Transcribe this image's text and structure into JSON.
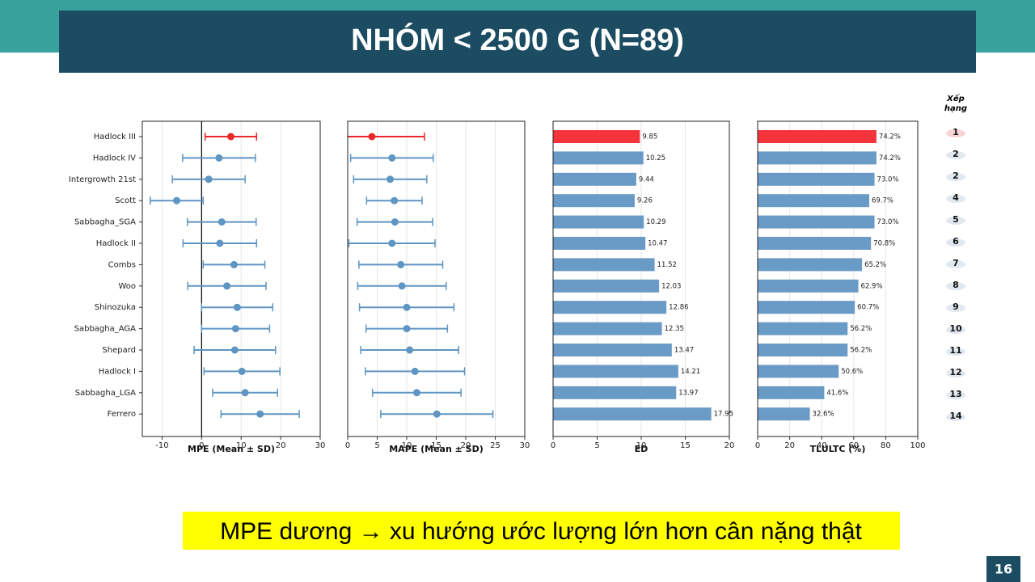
{
  "title": "NHÓM < 2500 G (N=89)",
  "footer": "MPE dương → xu hướng ước lượng lớn hơn cân nặng thật",
  "page_number": "16",
  "ranking": {
    "header": "Xếp hạng",
    "ranks": [
      1,
      2,
      2,
      4,
      5,
      6,
      7,
      8,
      9,
      10,
      11,
      12,
      13,
      14
    ]
  },
  "chart_data": [
    {
      "type": "errorbar",
      "xlabel": "MPE (Mean ± SD)",
      "categories": [
        "Hadlock III",
        "Hadlock IV",
        "Intergrowth 21st",
        "Scott",
        "Sabbagha_SGA",
        "Hadlock II",
        "Combs",
        "Woo",
        "Shinozuka",
        "Sabbagha_AGA",
        "Shepard",
        "Hadlock I",
        "Sabbagha_LGA",
        "Ferrero"
      ],
      "values": [
        7.4,
        4.4,
        1.8,
        -6.3,
        5.1,
        4.6,
        8.2,
        6.4,
        9.0,
        8.6,
        8.4,
        10.2,
        11.0,
        14.8
      ],
      "errors": [
        6.5,
        9.2,
        9.2,
        6.7,
        8.7,
        9.3,
        7.8,
        9.9,
        9.0,
        8.6,
        10.3,
        9.6,
        8.2,
        9.9
      ],
      "colors": [
        "#e8282b",
        "#5f95c2",
        "#5f95c2",
        "#5f95c2",
        "#5f95c2",
        "#5f95c2",
        "#5f95c2",
        "#5f95c2",
        "#5f95c2",
        "#5f95c2",
        "#5f95c2",
        "#5f95c2",
        "#5f95c2",
        "#5f95c2"
      ],
      "xlim": [
        -15,
        30
      ],
      "xticks": [
        -10,
        0,
        10,
        20,
        30
      ],
      "grid": true,
      "zero_line": true
    },
    {
      "type": "errorbar",
      "xlabel": "MAPE (Mean ± SD)",
      "values": [
        4.1,
        7.5,
        7.2,
        7.9,
        8.0,
        7.5,
        9.0,
        9.2,
        10.0,
        10.0,
        10.5,
        11.4,
        11.7,
        15.1
      ],
      "errors": [
        8.9,
        7.0,
        6.2,
        4.7,
        6.4,
        7.3,
        7.1,
        7.5,
        8.0,
        6.9,
        8.3,
        8.4,
        7.5,
        9.5
      ],
      "colors": [
        "#e8282b",
        "#5f95c2",
        "#5f95c2",
        "#5f95c2",
        "#5f95c2",
        "#5f95c2",
        "#5f95c2",
        "#5f95c2",
        "#5f95c2",
        "#5f95c2",
        "#5f95c2",
        "#5f95c2",
        "#5f95c2",
        "#5f95c2"
      ],
      "xlim": [
        0,
        30
      ],
      "xticks": [
        0,
        5,
        10,
        15,
        20,
        25,
        30
      ],
      "grid": true,
      "zero_line": false
    },
    {
      "type": "barh",
      "xlabel": "ED",
      "values": [
        9.85,
        10.25,
        9.44,
        9.26,
        10.29,
        10.47,
        11.52,
        12.03,
        12.86,
        12.35,
        13.47,
        14.21,
        13.97,
        17.95
      ],
      "colors": [
        "#f5333a",
        "#6a9bc6",
        "#6a9bc6",
        "#6a9bc6",
        "#6a9bc6",
        "#6a9bc6",
        "#6a9bc6",
        "#6a9bc6",
        "#6a9bc6",
        "#6a9bc6",
        "#6a9bc6",
        "#6a9bc6",
        "#6a9bc6",
        "#6a9bc6"
      ],
      "xlim": [
        0,
        20
      ],
      "xticks": [
        0,
        5,
        10,
        15,
        20
      ],
      "grid": true
    },
    {
      "type": "barh",
      "xlabel": "TLULTC (%)",
      "values": [
        74.2,
        74.2,
        73.0,
        69.7,
        73.0,
        70.8,
        65.2,
        62.9,
        60.7,
        56.2,
        56.2,
        50.6,
        41.6,
        32.6
      ],
      "value_labels": [
        "74.2%",
        "74.2%",
        "73.0%",
        "69.7%",
        "73.0%",
        "70.8%",
        "65.2%",
        "62.9%",
        "60.7%",
        "56.2%",
        "56.2%",
        "50.6%",
        "41.6%",
        "32.6%"
      ],
      "colors": [
        "#f5333a",
        "#6a9bc6",
        "#6a9bc6",
        "#6a9bc6",
        "#6a9bc6",
        "#6a9bc6",
        "#6a9bc6",
        "#6a9bc6",
        "#6a9bc6",
        "#6a9bc6",
        "#6a9bc6",
        "#6a9bc6",
        "#6a9bc6",
        "#6a9bc6"
      ],
      "xlim": [
        0,
        100
      ],
      "xticks": [
        0,
        20,
        40,
        60,
        80,
        100
      ],
      "grid": true
    }
  ]
}
